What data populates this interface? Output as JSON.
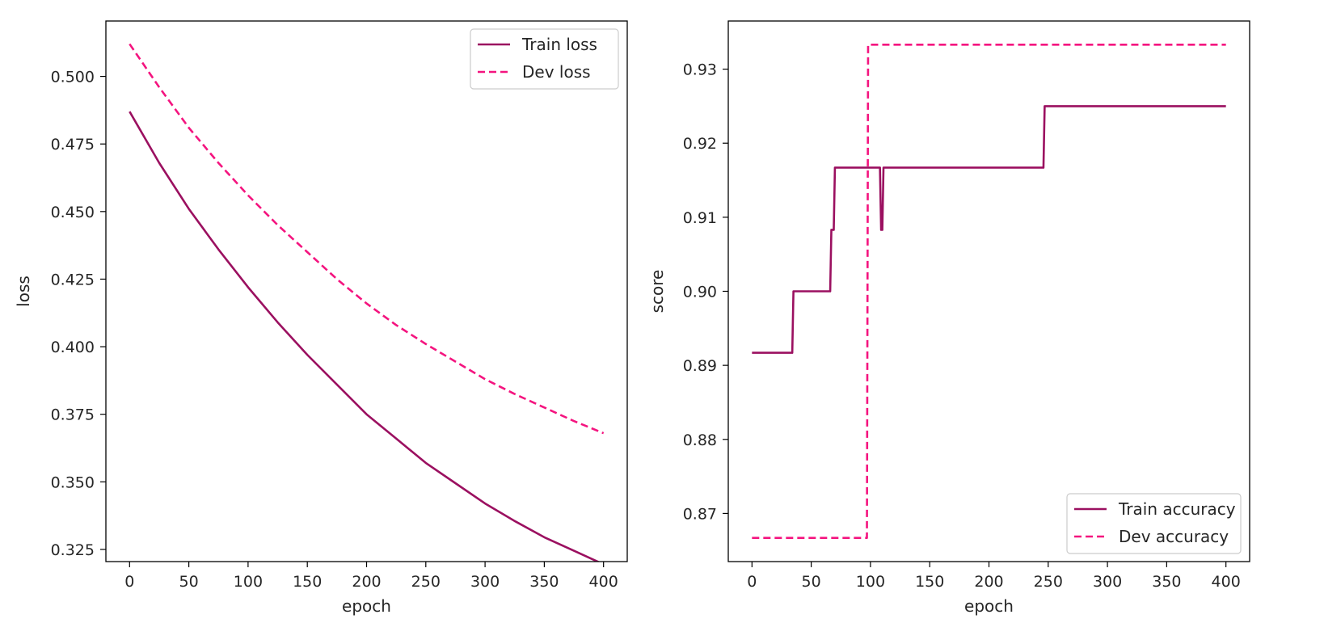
{
  "figure": {
    "colors": {
      "train": "#9b1060",
      "dev": "#f4147f",
      "axis": "#000000",
      "text": "#262626",
      "legend_border": "#cccccc"
    }
  },
  "chart_data": [
    {
      "type": "line",
      "title": "",
      "xlabel": "epoch",
      "ylabel": "loss",
      "xlim": [
        -20,
        420
      ],
      "ylim": [
        0.3205,
        0.5205
      ],
      "xticks": [
        0,
        50,
        100,
        150,
        200,
        250,
        300,
        350,
        400
      ],
      "xtick_labels": [
        "0",
        "50",
        "100",
        "150",
        "200",
        "250",
        "300",
        "350",
        "400"
      ],
      "yticks": [
        0.325,
        0.35,
        0.375,
        0.4,
        0.425,
        0.45,
        0.475,
        0.5
      ],
      "ytick_labels": [
        "0.325",
        "0.350",
        "0.375",
        "0.400",
        "0.425",
        "0.450",
        "0.475",
        "0.500"
      ],
      "legend_position": "top-right",
      "series": [
        {
          "name": "Train loss",
          "style": "solid",
          "x": [
            0,
            25,
            50,
            75,
            100,
            125,
            150,
            175,
            200,
            225,
            250,
            275,
            300,
            325,
            350,
            375,
            400
          ],
          "values": [
            0.487,
            0.468,
            0.451,
            0.436,
            0.422,
            0.409,
            0.397,
            0.386,
            0.375,
            0.366,
            0.357,
            0.3495,
            0.342,
            0.3355,
            0.3295,
            0.3245,
            0.3195
          ]
        },
        {
          "name": "Dev loss",
          "style": "dashed",
          "x": [
            0,
            25,
            50,
            75,
            100,
            125,
            150,
            175,
            200,
            225,
            250,
            275,
            300,
            325,
            350,
            375,
            400
          ],
          "values": [
            0.512,
            0.496,
            0.481,
            0.468,
            0.456,
            0.445,
            0.435,
            0.425,
            0.416,
            0.408,
            0.401,
            0.3945,
            0.388,
            0.3825,
            0.3775,
            0.3725,
            0.368
          ]
        }
      ]
    },
    {
      "type": "line",
      "title": "",
      "xlabel": "epoch",
      "ylabel": "score",
      "xlim": [
        -20,
        420
      ],
      "ylim": [
        0.8635,
        0.9365
      ],
      "xticks": [
        0,
        50,
        100,
        150,
        200,
        250,
        300,
        350,
        400
      ],
      "xtick_labels": [
        "0",
        "50",
        "100",
        "150",
        "200",
        "250",
        "300",
        "350",
        "400"
      ],
      "yticks": [
        0.87,
        0.88,
        0.89,
        0.9,
        0.91,
        0.92,
        0.93
      ],
      "ytick_labels": [
        "0.87",
        "0.88",
        "0.89",
        "0.90",
        "0.91",
        "0.92",
        "0.93"
      ],
      "legend_position": "bottom-right",
      "series": [
        {
          "name": "Train accuracy",
          "style": "solid",
          "x": [
            0,
            34,
            35,
            66,
            67,
            69,
            70,
            108,
            109,
            110,
            111,
            246,
            247,
            400
          ],
          "values": [
            0.8917,
            0.8917,
            0.9,
            0.9,
            0.9083,
            0.9083,
            0.9167,
            0.9167,
            0.9083,
            0.9083,
            0.9167,
            0.9167,
            0.925,
            0.925
          ]
        },
        {
          "name": "Dev accuracy",
          "style": "dashed",
          "x": [
            0,
            97,
            98,
            400
          ],
          "values": [
            0.8667,
            0.8667,
            0.9333,
            0.9333
          ]
        }
      ]
    }
  ]
}
